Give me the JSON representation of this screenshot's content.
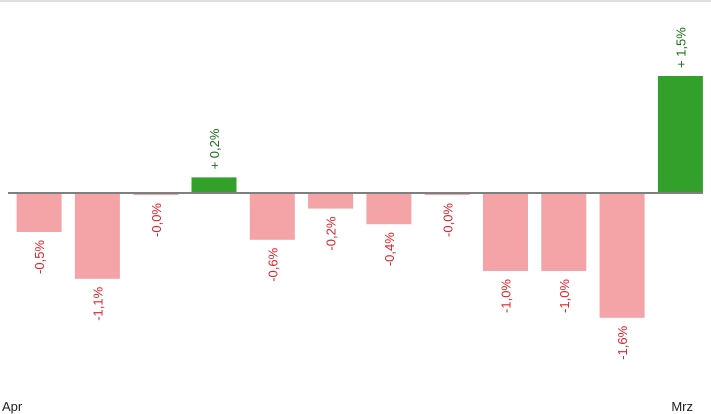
{
  "chart_data": {
    "type": "bar",
    "title": "",
    "xlabel": "",
    "ylabel": "",
    "categories": [
      "Apr",
      "",
      "",
      "",
      "",
      "",
      "",
      "",
      "",
      "",
      "",
      "Mrz"
    ],
    "values": [
      -0.5,
      -1.1,
      -0.0,
      0.2,
      -0.6,
      -0.2,
      -0.4,
      -0.0,
      -1.0,
      -1.0,
      -1.6,
      1.5
    ],
    "value_labels": [
      "-0,5%",
      "-1,1%",
      "-0,0%",
      "+ 0,2%",
      "-0,6%",
      "-0,2%",
      "-0,4%",
      "-0,0%",
      "-1,0%",
      "-1,0%",
      "-1,6%",
      "+ 1,5%"
    ],
    "ylim": [
      -1.6,
      1.5
    ],
    "grid": false,
    "legend": "none",
    "colors": {
      "positive_bar": "#33a02c",
      "negative_bar": "#f4a3a6",
      "positive_label": "#1a6e1a",
      "negative_label": "#e0232b",
      "baseline": "#7f7f7f",
      "top_border": "#bfbfbf"
    }
  }
}
